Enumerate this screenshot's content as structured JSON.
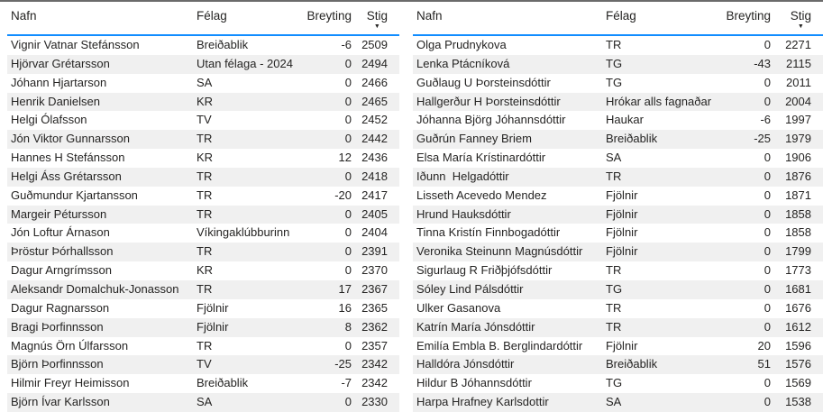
{
  "accent_color": "#118DFF",
  "divider_color": "#6B6B6B",
  "stripe_color": "#F0F0F0",
  "sort_icon": "▼",
  "tables": [
    {
      "id": "left",
      "columns": [
        {
          "key": "nafn",
          "label": "Nafn",
          "sorted": false
        },
        {
          "key": "felag",
          "label": "Félag",
          "sorted": false
        },
        {
          "key": "breyting",
          "label": "Breyting",
          "sorted": false
        },
        {
          "key": "stig",
          "label": "Stig",
          "sorted": true
        }
      ],
      "rows": [
        [
          "Vignir Vatnar Stefánsson",
          "Breiðablik",
          "-6",
          "2509"
        ],
        [
          "Hjörvar Grétarsson",
          "Utan félaga - 2024",
          "0",
          "2494"
        ],
        [
          "Jóhann Hjartarson",
          "SA",
          "0",
          "2466"
        ],
        [
          "Henrik Danielsen",
          "KR",
          "0",
          "2465"
        ],
        [
          "Helgi Ólafsson",
          "TV",
          "0",
          "2452"
        ],
        [
          "Jón Viktor Gunnarsson",
          "TR",
          "0",
          "2442"
        ],
        [
          "Hannes H Stefánsson",
          "KR",
          "12",
          "2436"
        ],
        [
          "Helgi Áss Grétarsson",
          "TR",
          "0",
          "2418"
        ],
        [
          "Guðmundur Kjartansson",
          "TR",
          "-20",
          "2417"
        ],
        [
          "Margeir Pétursson",
          "TR",
          "0",
          "2405"
        ],
        [
          "Jón Loftur Árnason",
          "Víkingaklúbburinn",
          "0",
          "2404"
        ],
        [
          "Þröstur Þórhallsson",
          "TR",
          "0",
          "2391"
        ],
        [
          "Dagur Arngrímsson",
          "KR",
          "0",
          "2370"
        ],
        [
          "Aleksandr Domalchuk-Jonasson",
          "TR",
          "17",
          "2367"
        ],
        [
          "Dagur Ragnarsson",
          "Fjölnir",
          "16",
          "2365"
        ],
        [
          "Bragi Þorfinnsson",
          "Fjölnir",
          "8",
          "2362"
        ],
        [
          "Magnús Örn Úlfarsson",
          "TR",
          "0",
          "2357"
        ],
        [
          "Björn Þorfinnsson",
          "TV",
          "-25",
          "2342"
        ],
        [
          "Hilmir Freyr Heimisson",
          "Breiðablik",
          "-7",
          "2342"
        ],
        [
          "Björn Ívar Karlsson",
          "SA",
          "0",
          "2330"
        ]
      ]
    },
    {
      "id": "right",
      "columns": [
        {
          "key": "nafn",
          "label": "Nafn",
          "sorted": false
        },
        {
          "key": "felag",
          "label": "Félag",
          "sorted": false
        },
        {
          "key": "breyting",
          "label": "Breyting",
          "sorted": false
        },
        {
          "key": "stig",
          "label": "Stig",
          "sorted": true
        }
      ],
      "rows": [
        [
          "Olga Prudnykova",
          "TR",
          "0",
          "2271"
        ],
        [
          "Lenka Ptácníková",
          "TG",
          "-43",
          "2115"
        ],
        [
          "Guðlaug U Þorsteinsdóttir",
          "TG",
          "0",
          "2011"
        ],
        [
          "Hallgerður H Þorsteinsdóttir",
          "Hrókar alls fagnaðar",
          "0",
          "2004"
        ],
        [
          "Jóhanna Björg Jóhannsdóttir",
          "Haukar",
          "-6",
          "1997"
        ],
        [
          "Guðrún Fanney Briem",
          "Breiðablik",
          "-25",
          "1979"
        ],
        [
          "Elsa María Krístinardóttir",
          "SA",
          "0",
          "1906"
        ],
        [
          "Iðunn  Helgadóttir",
          "TR",
          "0",
          "1876"
        ],
        [
          "Lisseth Acevedo Mendez",
          "Fjölnir",
          "0",
          "1871"
        ],
        [
          "Hrund Hauksdóttir",
          "Fjölnir",
          "0",
          "1858"
        ],
        [
          "Tinna Kristín Finnbogadóttir",
          "Fjölnir",
          "0",
          "1858"
        ],
        [
          "Veronika Steinunn Magnúsdóttir",
          "Fjölnir",
          "0",
          "1799"
        ],
        [
          "Sigurlaug R Friðþjófsdóttir",
          "TR",
          "0",
          "1773"
        ],
        [
          "Sóley Lind Pálsdóttir",
          "TG",
          "0",
          "1681"
        ],
        [
          "Ulker Gasanova",
          "TR",
          "0",
          "1676"
        ],
        [
          "Katrín María Jónsdóttir",
          "TR",
          "0",
          "1612"
        ],
        [
          "Emilía Embla B. Berglindardóttir",
          "Fjölnir",
          "20",
          "1596"
        ],
        [
          "Halldóra Jónsdóttir",
          "Breiðablik",
          "51",
          "1576"
        ],
        [
          "Hildur B Jóhannsdóttir",
          "TG",
          "0",
          "1569"
        ],
        [
          "Harpa Hrafney Karlsdottir",
          "SA",
          "0",
          "1538"
        ]
      ]
    }
  ]
}
